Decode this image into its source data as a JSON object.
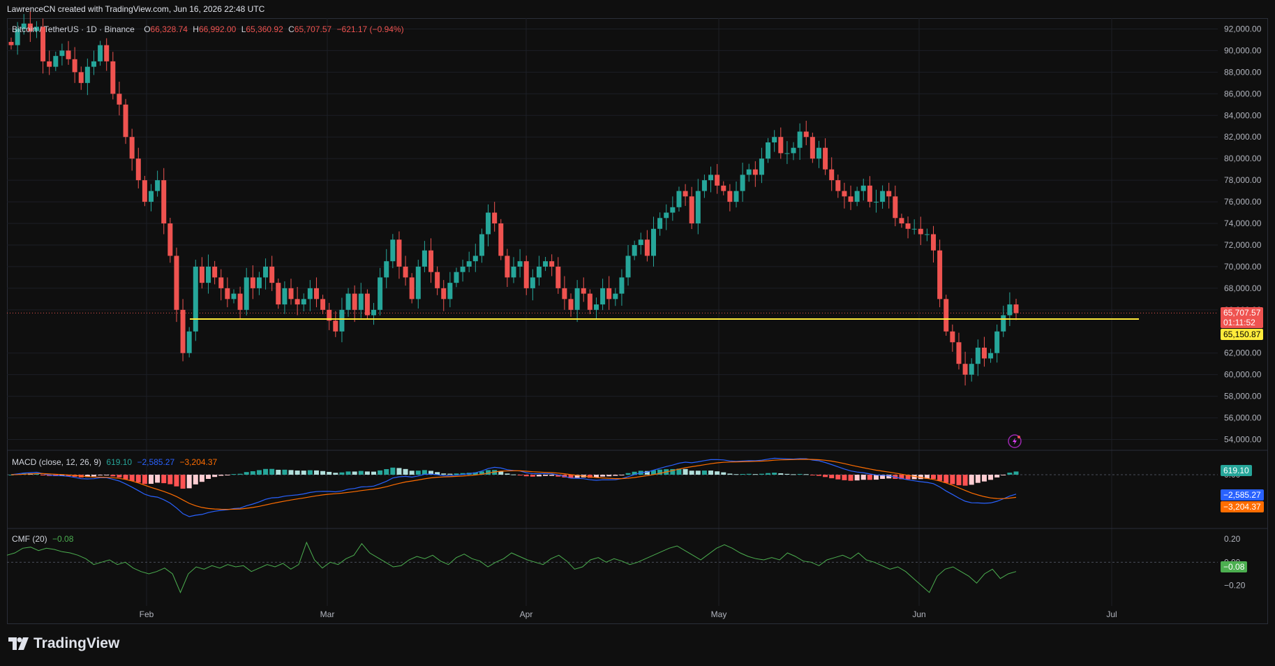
{
  "header": {
    "credit": "LawrenceCN created with TradingView.com, Jun 16, 2026 22:48 UTC"
  },
  "legend_main": {
    "symbol": "Bitcoin / TetherUS · 1D · Binance",
    "o_label": "O",
    "o_value": "66,328.74",
    "h_label": "H",
    "h_value": "66,992.00",
    "l_label": "L",
    "l_value": "65,360.92",
    "c_label": "C",
    "c_value": "65,707.57",
    "change": "−621.17 (−0.94%)"
  },
  "legend_macd": {
    "title": "MACD (close, 12, 26, 9)",
    "hist": "619.10",
    "macd": "−2,585.27",
    "signal": "−3,204.37"
  },
  "legend_cmf": {
    "title": "CMF (20)",
    "value": "−0.08"
  },
  "tags": {
    "price": "65,707.57",
    "countdown": "01:11:52",
    "support": "65,150.87",
    "macd_hist": "619.10",
    "macd_line": "−2,585.27",
    "macd_signal": "−3,204.37",
    "cmf": "−0.08"
  },
  "colors": {
    "up": "#26a69a",
    "down": "#ef5350",
    "support": "#ffeb3b",
    "macd": "#2962ff",
    "signal": "#ff6d00",
    "cmf": "#4caf50",
    "hist_up_strong": "#26a69a",
    "hist_up_weak": "#b2dfdb",
    "hist_down_strong": "#ff5252",
    "hist_down_weak": "#ffcdd2"
  },
  "footer": {
    "brand": "TradingView",
    "logo_icon": "tradingview-logo-icon"
  },
  "chart_data": {
    "type": "candlestick",
    "title": "Bitcoin / TetherUS · 1D · Binance",
    "x_ticks": [
      "Feb",
      "Mar",
      "Apr",
      "May",
      "Jun",
      "Jul"
    ],
    "y_ticks": [
      "92,000.00",
      "90,000.00",
      "88,000.00",
      "86,000.00",
      "84,000.00",
      "82,000.00",
      "80,000.00",
      "78,000.00",
      "76,000.00",
      "74,000.00",
      "72,000.00",
      "70,000.00",
      "68,000.00",
      "66,000.00",
      "62,000.00",
      "60,000.00",
      "58,000.00",
      "56,000.00",
      "54,000.00"
    ],
    "y_range": [
      53000,
      93000
    ],
    "support_level": 65150.87,
    "last_price": 65707.57,
    "macd_axis_ticks": [
      "0.00"
    ],
    "cmf_axis_ticks": [
      "0.20",
      "0.00",
      "−0.20"
    ],
    "cmf_range": [
      -0.28,
      0.26
    ],
    "closes_approx": [
      90500,
      92000,
      92500,
      91800,
      92200,
      89000,
      88500,
      89500,
      90000,
      89200,
      88000,
      87000,
      88500,
      89000,
      90500,
      89000,
      86000,
      85000,
      82000,
      80000,
      78000,
      76000,
      77000,
      78000,
      74000,
      71000,
      66000,
      62000,
      64000,
      70000,
      68500,
      70000,
      69000,
      68000,
      67000,
      67500,
      66000,
      69000,
      68000,
      69000,
      70000,
      68500,
      66500,
      68000,
      67000,
      66500,
      67000,
      68000,
      67000,
      66000,
      65000,
      64000,
      66000,
      67500,
      66000,
      67500,
      65500,
      66000,
      69000,
      70500,
      72500,
      70000,
      69000,
      67000,
      70000,
      71500,
      69500,
      68000,
      67000,
      68500,
      69500,
      70000,
      70500,
      71000,
      73000,
      75000,
      74000,
      71000,
      69000,
      70000,
      70500,
      68000,
      69000,
      70000,
      70500,
      70000,
      68000,
      67000,
      66000,
      68000,
      67500,
      66000,
      66500,
      68000,
      67000,
      67500,
      69000,
      71000,
      72000,
      72500,
      71000,
      73500,
      74500,
      75000,
      75500,
      77000,
      76500,
      74000,
      77000,
      78000,
      78500,
      77500,
      77000,
      76000,
      77000,
      78500,
      79000,
      78500,
      80000,
      81500,
      82000,
      80500,
      80500,
      81000,
      82500,
      82000,
      80000,
      81000,
      79000,
      78000,
      77000,
      76500,
      76000,
      77000,
      77500,
      76000,
      76000,
      77000,
      76500,
      74500,
      74000,
      73500,
      73500,
      73000,
      73000,
      71500,
      67000,
      64000,
      63000,
      61000,
      60000,
      61000,
      62500,
      61500,
      62000,
      64000,
      65500,
      66500,
      65700
    ],
    "cmf_approx": [
      0.06,
      0.08,
      0.12,
      0.13,
      0.1,
      0.12,
      0.11,
      0.09,
      0.08,
      0.06,
      0.03,
      -0.02,
      0.0,
      0.02,
      -0.02,
      0.0,
      -0.05,
      -0.08,
      -0.1,
      -0.08,
      -0.05,
      -0.1,
      -0.26,
      -0.1,
      -0.04,
      -0.06,
      -0.03,
      -0.05,
      -0.02,
      -0.04,
      -0.03,
      -0.08,
      -0.05,
      -0.02,
      -0.04,
      -0.01,
      -0.06,
      -0.02,
      0.17,
      0.02,
      -0.05,
      0.0,
      -0.02,
      0.03,
      0.06,
      0.16,
      0.08,
      0.04,
      0.0,
      -0.04,
      -0.03,
      0.02,
      0.05,
      0.03,
      0.06,
      0.01,
      -0.02,
      0.04,
      0.07,
      0.03,
      0.01,
      -0.04,
      0.0,
      0.03,
      0.08,
      0.05,
      0.02,
      0.0,
      -0.02,
      0.03,
      0.06,
      0.01,
      -0.06,
      -0.04,
      0.02,
      0.04,
      0.0,
      0.03,
      0.01,
      -0.02,
      0.0,
      0.03,
      0.06,
      0.09,
      0.12,
      0.14,
      0.1,
      0.06,
      0.02,
      0.07,
      0.12,
      0.15,
      0.12,
      0.08,
      0.05,
      0.03,
      0.02,
      0.04,
      0.02,
      0.08,
      0.05,
      0.01,
      0.0,
      -0.03,
      0.02,
      0.04,
      0.06,
      0.03,
      0.08,
      0.02,
      0.0,
      -0.03,
      -0.06,
      -0.04,
      -0.08,
      -0.14,
      -0.2,
      -0.26,
      -0.12,
      -0.06,
      -0.04,
      -0.08,
      -0.12,
      -0.18,
      -0.1,
      -0.06,
      -0.14,
      -0.1,
      -0.08
    ]
  }
}
